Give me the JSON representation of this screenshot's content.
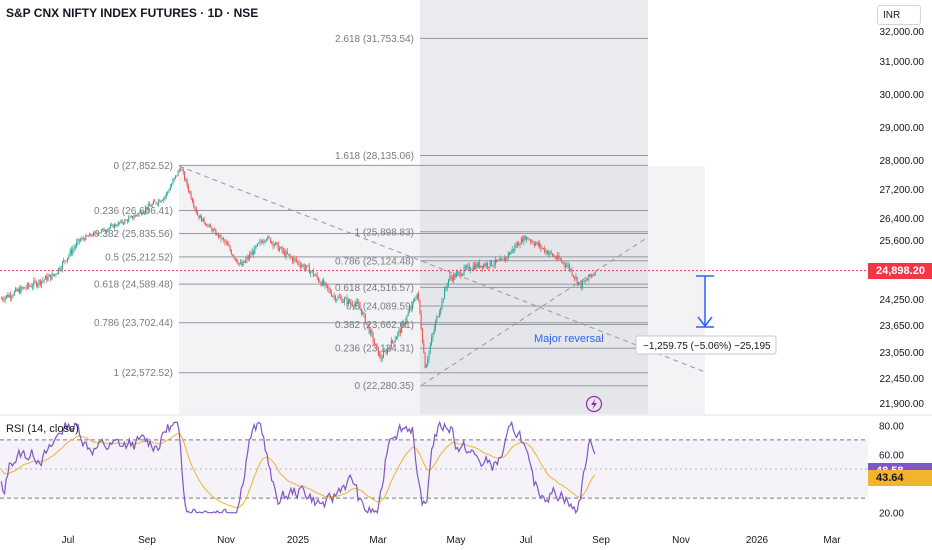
{
  "title": "S&P CNX NIFTY INDEX FUTURES · 1D · NSE",
  "currency": "INR",
  "colors": {
    "up": "#26a69a",
    "down": "#ef5350",
    "price_line": "#f23645",
    "fib_line": "#9598a1",
    "rsi": "#7e57c2",
    "rsi_ma": "#f0b42d",
    "arrow": "#2962ff",
    "annotation": "#2962ff"
  },
  "chart_data": [
    {
      "type": "candlestick",
      "name": "price",
      "x_ticks": [
        "Jul",
        "Sep",
        "Nov",
        "2025",
        "Mar",
        "May",
        "Jul",
        "Sep",
        "Nov",
        "2026",
        "Mar"
      ],
      "y_ticks": [
        "32,000.00",
        "31,000.00",
        "30,000.00",
        "29,000.00",
        "28,000.00",
        "27,200.00",
        "26,400.00",
        "25,600.00",
        "24,250.00",
        "23,650.00",
        "23,050.00",
        "22,450.00",
        "21,900.00"
      ],
      "last_price": "24,898.20",
      "keypoints": [
        {
          "date": "2024-05-28",
          "close": 24250
        },
        {
          "date": "2024-06-20",
          "close": 24800
        },
        {
          "date": "2024-07-10",
          "close": 25600
        },
        {
          "date": "2024-08-05",
          "close": 26100
        },
        {
          "date": "2024-08-20",
          "close": 26400
        },
        {
          "date": "2024-09-15",
          "close": 27000
        },
        {
          "date": "2024-09-27",
          "close": 27800
        },
        {
          "date": "2024-10-10",
          "close": 26500
        },
        {
          "date": "2024-10-25",
          "close": 25800
        },
        {
          "date": "2024-11-14",
          "close": 25000
        },
        {
          "date": "2024-12-05",
          "close": 25700
        },
        {
          "date": "2024-12-20",
          "close": 25300
        },
        {
          "date": "2025-01-10",
          "close": 24900
        },
        {
          "date": "2025-01-28",
          "close": 24300
        },
        {
          "date": "2025-02-15",
          "close": 24100
        },
        {
          "date": "2025-03-03",
          "close": 22900
        },
        {
          "date": "2025-03-20",
          "close": 23600
        },
        {
          "date": "2025-04-01",
          "close": 24400
        },
        {
          "date": "2025-04-07",
          "close": 22700
        },
        {
          "date": "2025-04-15",
          "close": 23700
        },
        {
          "date": "2025-04-25",
          "close": 24700
        },
        {
          "date": "2025-05-15",
          "close": 25000
        },
        {
          "date": "2025-06-10",
          "close": 25100
        },
        {
          "date": "2025-06-30",
          "close": 25700
        },
        {
          "date": "2025-07-15",
          "close": 25400
        },
        {
          "date": "2025-08-05",
          "close": 25000
        },
        {
          "date": "2025-08-15",
          "close": 24550
        },
        {
          "date": "2025-08-28",
          "close": 24898
        }
      ],
      "fib_retracement_1": {
        "levels": [
          {
            "label": "0 (27,852.52)",
            "value": 27852.52
          },
          {
            "label": "0.236 (26,606.41)",
            "value": 26606.41
          },
          {
            "label": "0.382 (25,835.56)",
            "value": 25835.56
          },
          {
            "label": "0.5 (25,212.52)",
            "value": 25212.52
          },
          {
            "label": "0.618 (24,589.48)",
            "value": 24589.48
          },
          {
            "label": "0.786 (23,702.44)",
            "value": 23702.44
          },
          {
            "label": "1 (22,572.52)",
            "value": 22572.52
          }
        ]
      },
      "fib_retracement_2": {
        "levels": [
          {
            "label": "2.618 (31,753.54)",
            "value": 31753.54
          },
          {
            "label": "1.618 (28,135.06)",
            "value": 28135.06
          },
          {
            "label": "1 (25,898.83)",
            "value": 25898.83
          },
          {
            "label": "0.786 (25,124.48)",
            "value": 25124.48
          },
          {
            "label": "0.618 (24,516.57)",
            "value": 24516.57
          },
          {
            "label": "0.5 (24,089.59)",
            "value": 24089.59
          },
          {
            "label": "0.382 (23,662.61)",
            "value": 23662.61
          },
          {
            "label": "0.236 (23,134.31)",
            "value": 23134.31
          },
          {
            "label": "0 (22,280.35)",
            "value": 22280.35
          }
        ]
      },
      "annotations": {
        "major_reversal": "Major reversal",
        "measure": "−1,259.75 (−5.06%) −25,195"
      }
    },
    {
      "type": "line",
      "name": "RSI (14, close)",
      "y_ticks": [
        "80.00",
        "60.00",
        "20.00"
      ],
      "rsi_value": "48.58",
      "rsi_ma_value": "43.64",
      "bands": [
        70,
        30
      ]
    }
  ]
}
